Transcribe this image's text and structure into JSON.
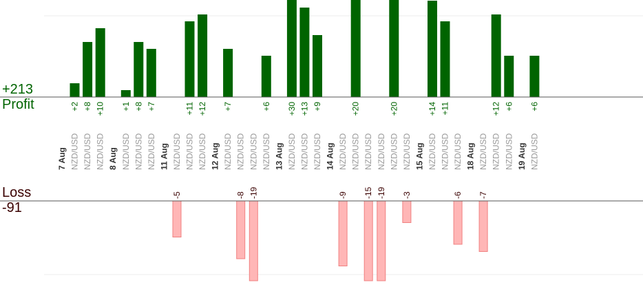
{
  "summary": {
    "profit_total": "+213",
    "profit_label": "Profit",
    "loss_label": "Loss",
    "loss_total": "-91"
  },
  "colors": {
    "profit_bar": "#006400",
    "loss_bar": "#ffb6b6",
    "profit_text": "#006400",
    "loss_text": "#3a0000",
    "date_text": "#333333",
    "pair_text": "#999999",
    "axis": "#555555",
    "grid": "#eeeeee"
  },
  "chart_data": {
    "type": "bar",
    "ylim_profit": [
      0,
      12
    ],
    "ylim_loss": [
      -11,
      0
    ],
    "grid": true,
    "groups": [
      {
        "date": "7 Aug",
        "trades": [
          {
            "pair": "NZD/USD",
            "value": 2
          },
          {
            "pair": "NZD/USD",
            "value": 8
          },
          {
            "pair": "NZD/USD",
            "value": 10
          }
        ]
      },
      {
        "date": "8 Aug",
        "trades": [
          {
            "pair": "NZD/USD",
            "value": 1
          },
          {
            "pair": "NZD/USD",
            "value": 8
          },
          {
            "pair": "NZD/USD",
            "value": 7
          }
        ]
      },
      {
        "date": "11 Aug",
        "trades": [
          {
            "pair": "NZD/USD",
            "value": -5
          },
          {
            "pair": "NZD/USD",
            "value": 11
          },
          {
            "pair": "NZD/USD",
            "value": 12
          }
        ]
      },
      {
        "date": "12 Aug",
        "trades": [
          {
            "pair": "NZD/USD",
            "value": 7
          },
          {
            "pair": "NZD/USD",
            "value": -8
          },
          {
            "pair": "NZD/USD",
            "value": -19
          },
          {
            "pair": "NZD/USD",
            "value": 6
          }
        ]
      },
      {
        "date": "13 Aug",
        "trades": [
          {
            "pair": "NZD/USD",
            "value": 30
          },
          {
            "pair": "NZD/USD",
            "value": 13
          },
          {
            "pair": "NZD/USD",
            "value": 9
          }
        ]
      },
      {
        "date": "14 Aug",
        "trades": [
          {
            "pair": "NZD/USD",
            "value": -9
          },
          {
            "pair": "NZD/USD",
            "value": 20
          },
          {
            "pair": "NZD/USD",
            "value": -15
          },
          {
            "pair": "NZD/USD",
            "value": -19
          },
          {
            "pair": "NZD/USD",
            "value": 20
          },
          {
            "pair": "NZD/USD",
            "value": -3
          }
        ]
      },
      {
        "date": "15 Aug",
        "trades": [
          {
            "pair": "NZD/USD",
            "value": 14
          },
          {
            "pair": "NZD/USD",
            "value": 11
          },
          {
            "pair": "NZD/USD",
            "value": -6
          }
        ]
      },
      {
        "date": "18 Aug",
        "trades": [
          {
            "pair": "NZD/USD",
            "value": -7
          },
          {
            "pair": "NZD/USD",
            "value": 12
          },
          {
            "pair": "NZD/USD",
            "value": 6
          }
        ]
      },
      {
        "date": "19 Aug",
        "trades": [
          {
            "pair": "NZD/USD",
            "value": 6
          }
        ]
      }
    ]
  }
}
